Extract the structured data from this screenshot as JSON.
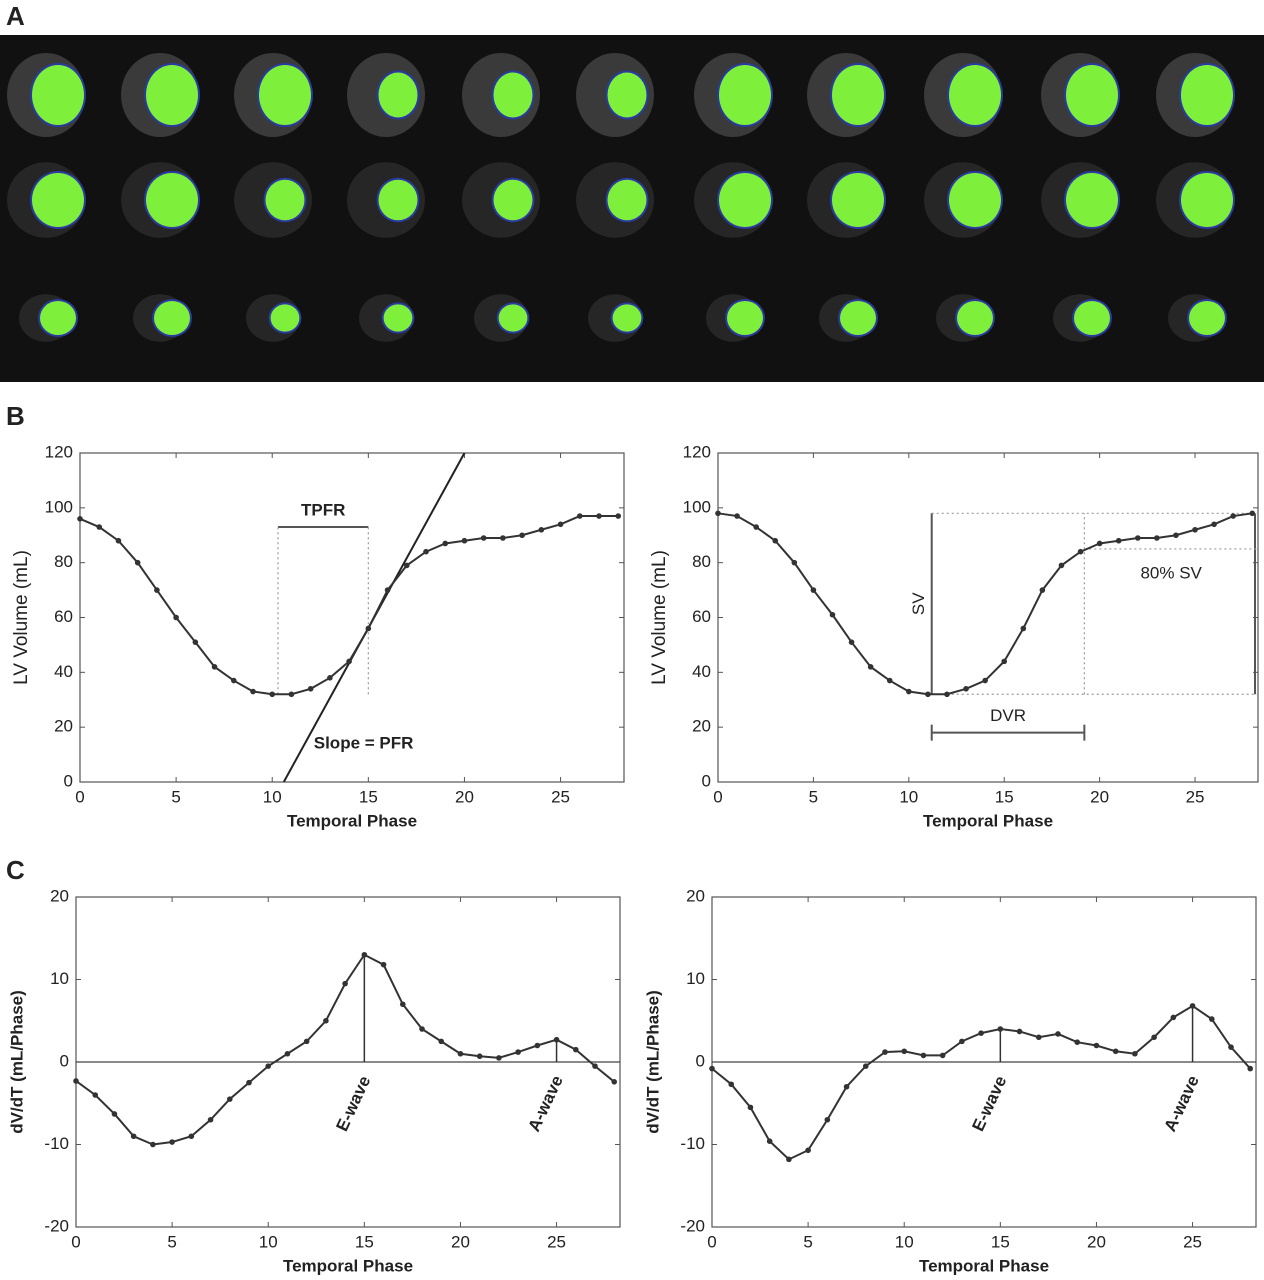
{
  "panel_labels": [
    "A",
    "B",
    "C"
  ],
  "chart_data": [
    {
      "type": "line",
      "xlabel": "Temporal Phase",
      "ylabel": "LV Volume (mL)",
      "color": "#333333",
      "x": [
        0,
        1,
        2,
        3,
        4,
        5,
        6,
        7,
        8,
        9,
        10,
        11,
        12,
        13,
        14,
        15,
        16,
        17,
        18,
        19,
        20,
        21,
        22,
        23,
        24,
        25,
        26,
        27,
        28
      ],
      "values": [
        96,
        93,
        88,
        80,
        70,
        60,
        51,
        42,
        37,
        33,
        32,
        32,
        34,
        38,
        44,
        56,
        70,
        79,
        84,
        87,
        88,
        89,
        89,
        90,
        92,
        94,
        97,
        97,
        97
      ],
      "xlim": [
        0,
        28.3
      ],
      "ylim": [
        0,
        120
      ],
      "xticks": [
        0,
        5,
        10,
        15,
        20,
        25
      ],
      "yticks": [
        0,
        20,
        40,
        60,
        80,
        100,
        120
      ],
      "interval": {
        "label": "TPFR",
        "x": [
          10.3,
          15
        ],
        "y": 93
      },
      "tangent": {
        "label": "Slope = PFR",
        "x": [
          10.6,
          20
        ],
        "y": [
          0,
          120
        ]
      }
    },
    {
      "type": "line",
      "xlabel": "Temporal Phase",
      "ylabel": "LV Volume (mL)",
      "color": "#333333",
      "x": [
        0,
        1,
        2,
        3,
        4,
        5,
        6,
        7,
        8,
        9,
        10,
        11,
        12,
        13,
        14,
        15,
        16,
        17,
        18,
        19,
        20,
        21,
        22,
        23,
        24,
        25,
        26,
        27,
        28
      ],
      "values": [
        98,
        97,
        93,
        88,
        80,
        70,
        61,
        51,
        42,
        37,
        33,
        32,
        32,
        34,
        37,
        44,
        56,
        70,
        79,
        84,
        87,
        88,
        89,
        89,
        90,
        92,
        94,
        97,
        98
      ],
      "xlim": [
        0,
        28.3
      ],
      "ylim": [
        0,
        120
      ],
      "xticks": [
        0,
        5,
        10,
        15,
        20,
        25
      ],
      "yticks": [
        0,
        20,
        40,
        60,
        80,
        100,
        120
      ],
      "interval": {
        "label": "DVR",
        "x": [
          11.2,
          19.2
        ],
        "y": 18
      },
      "sv": {
        "label": "SV",
        "x": 11.2,
        "y": [
          32,
          98
        ]
      },
      "threshold": {
        "label": "80% SV",
        "y": 85
      }
    },
    {
      "type": "line",
      "xlabel": "Temporal Phase",
      "ylabel": "dV/dT (mL/Phase)",
      "color": "#333333",
      "zero_line": true,
      "x": [
        0,
        1,
        2,
        3,
        4,
        5,
        6,
        7,
        8,
        9,
        10,
        11,
        12,
        13,
        14,
        15,
        16,
        17,
        18,
        19,
        20,
        21,
        22,
        23,
        24,
        25,
        26,
        27,
        28
      ],
      "values": [
        -2.3,
        -4,
        -6.3,
        -9,
        -10,
        -9.7,
        -9,
        -7,
        -4.5,
        -2.5,
        -0.5,
        1,
        2.5,
        5,
        9.5,
        13,
        11.8,
        7,
        4,
        2.5,
        1,
        0.7,
        0.5,
        1.2,
        2,
        2.7,
        1.5,
        -0.5,
        -2.4
      ],
      "xlim": [
        0,
        28.3
      ],
      "ylim": [
        -20,
        20
      ],
      "xticks": [
        0,
        5,
        10,
        15,
        20,
        25
      ],
      "yticks": [
        -20,
        -10,
        0,
        10,
        20
      ],
      "waves": [
        {
          "x": 15,
          "label": "E-wave"
        },
        {
          "x": 25,
          "label": "A-wave"
        }
      ]
    },
    {
      "type": "line",
      "xlabel": "Temporal Phase",
      "ylabel": "dV/dT (mL/Phase)",
      "color": "#333333",
      "zero_line": true,
      "x": [
        0,
        1,
        2,
        3,
        4,
        5,
        6,
        7,
        8,
        9,
        10,
        11,
        12,
        13,
        14,
        15,
        16,
        17,
        18,
        19,
        20,
        21,
        22,
        23,
        24,
        25,
        26,
        27,
        28
      ],
      "values": [
        -0.8,
        -2.7,
        -5.5,
        -9.6,
        -11.8,
        -10.7,
        -7,
        -3,
        -0.5,
        1.2,
        1.3,
        0.8,
        0.8,
        2.5,
        3.5,
        4,
        3.7,
        3,
        3.4,
        2.4,
        2,
        1.3,
        1,
        3,
        5.4,
        6.8,
        5.2,
        1.8,
        -0.8
      ],
      "xlim": [
        0,
        28.3
      ],
      "ylim": [
        -20,
        20
      ],
      "xticks": [
        0,
        5,
        10,
        15,
        20,
        25
      ],
      "yticks": [
        -20,
        -10,
        0,
        10,
        20
      ],
      "waves": [
        {
          "x": 15,
          "label": "E-wave"
        },
        {
          "x": 25,
          "label": "A-wave"
        }
      ]
    }
  ]
}
